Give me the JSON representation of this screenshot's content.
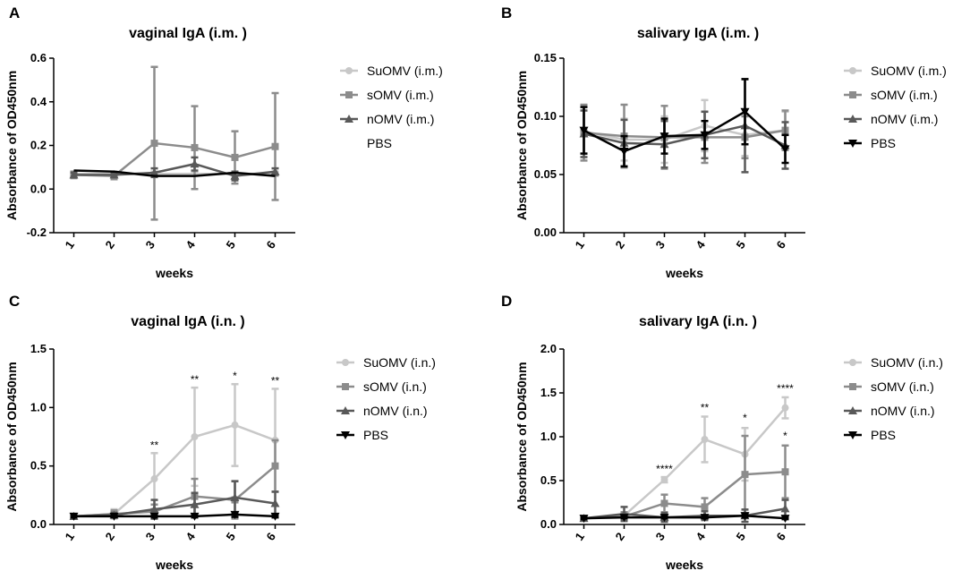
{
  "figure": {
    "colors": {
      "SuOMV": "#c8c8c8",
      "sOMV": "#8c8c8c",
      "nOMV": "#595959",
      "PBS": "#000000"
    }
  },
  "chart_data": [
    {
      "panel": "A",
      "type": "line",
      "title": "vaginal IgA (i.m. )",
      "xlabel": "weeks",
      "ylabel": "Absorbance of OD450nm",
      "categories": [
        "1",
        "2",
        "3",
        "4",
        "5",
        "6"
      ],
      "ylim": [
        -0.2,
        0.6
      ],
      "yticks": [
        "-0.2",
        "0.0",
        "0.2",
        "0.4",
        "0.6"
      ],
      "series": [
        {
          "key": "SuOMV",
          "name": "SuOMV (i.m.)",
          "marker": "circle",
          "values": [
            0.07,
            0.07,
            0.07,
            0.07,
            0.07,
            0.07
          ],
          "err": [
            0.01,
            0.01,
            0.01,
            0.01,
            0.01,
            0.01
          ]
        },
        {
          "key": "sOMV",
          "name": "sOMV (i.m.)",
          "marker": "square",
          "values": [
            0.065,
            0.06,
            0.21,
            0.19,
            0.145,
            0.195
          ],
          "err": [
            0.015,
            0.015,
            0.35,
            0.19,
            0.12,
            0.245
          ]
        },
        {
          "key": "nOMV",
          "name": "nOMV (i.m.)",
          "marker": "triangle",
          "values": [
            0.065,
            0.065,
            0.075,
            0.115,
            0.06,
            0.08
          ],
          "err": [
            0.01,
            0.01,
            0.02,
            0.03,
            0.02,
            0.015
          ]
        },
        {
          "key": "PBS",
          "name": "PBS",
          "marker": "none",
          "values": [
            0.085,
            0.08,
            0.06,
            0.06,
            0.075,
            0.06
          ],
          "err": [
            0,
            0,
            0,
            0,
            0,
            0
          ]
        }
      ],
      "annotations": []
    },
    {
      "panel": "B",
      "type": "line",
      "title": "salivary IgA (i.m. )",
      "xlabel": "weeks",
      "ylabel": "Absorbance of OD450nm",
      "categories": [
        "1",
        "2",
        "3",
        "4",
        "5",
        "6"
      ],
      "ylim": [
        0.0,
        0.15
      ],
      "yticks": [
        "0.00",
        "0.05",
        "0.10",
        "0.15"
      ],
      "series": [
        {
          "key": "SuOMV",
          "name": "SuOMV (i.m.)",
          "marker": "circle",
          "values": [
            0.087,
            0.08,
            0.08,
            0.092,
            0.084,
            0.088
          ],
          "err": [
            0.022,
            0.018,
            0.02,
            0.022,
            0.018,
            0.016
          ]
        },
        {
          "key": "sOMV",
          "name": "sOMV (i.m.)",
          "marker": "square",
          "values": [
            0.086,
            0.083,
            0.082,
            0.082,
            0.082,
            0.088
          ],
          "err": [
            0.024,
            0.027,
            0.027,
            0.022,
            0.018,
            0.017
          ]
        },
        {
          "key": "nOMV",
          "name": "nOMV (i.m.)",
          "marker": "triangle",
          "values": [
            0.085,
            0.077,
            0.076,
            0.084,
            0.092,
            0.075
          ],
          "err": [
            0.02,
            0.02,
            0.02,
            0.02,
            0.04,
            0.02
          ]
        },
        {
          "key": "PBS",
          "name": "PBS",
          "marker": "down-triangle",
          "values": [
            0.088,
            0.07,
            0.083,
            0.084,
            0.104,
            0.072
          ],
          "err": [
            0.02,
            0.013,
            0.015,
            0.012,
            0.028,
            0.012
          ]
        }
      ],
      "annotations": []
    },
    {
      "panel": "C",
      "type": "line",
      "title": "vaginal IgA (i.n. )",
      "xlabel": "weeks",
      "ylabel": "Absorbance of OD450nm",
      "categories": [
        "1",
        "2",
        "3",
        "4",
        "5",
        "6"
      ],
      "ylim": [
        0.0,
        1.5
      ],
      "yticks": [
        "0.0",
        "0.5",
        "1.0",
        "1.5"
      ],
      "series": [
        {
          "key": "SuOMV",
          "name": "SuOMV (i.n.)",
          "marker": "circle",
          "values": [
            0.07,
            0.09,
            0.39,
            0.75,
            0.85,
            0.72
          ],
          "err": [
            0.02,
            0.04,
            0.22,
            0.42,
            0.35,
            0.44
          ]
        },
        {
          "key": "sOMV",
          "name": "sOMV (i.n.)",
          "marker": "square",
          "values": [
            0.07,
            0.09,
            0.11,
            0.24,
            0.21,
            0.5
          ],
          "err": [
            0.02,
            0.03,
            0.06,
            0.15,
            0.16,
            0.22
          ]
        },
        {
          "key": "nOMV",
          "name": "nOMV (i.n.)",
          "marker": "triangle",
          "values": [
            0.07,
            0.08,
            0.13,
            0.17,
            0.23,
            0.18
          ],
          "err": [
            0.02,
            0.02,
            0.08,
            0.1,
            0.14,
            0.1
          ]
        },
        {
          "key": "PBS",
          "name": "PBS",
          "marker": "down-triangle",
          "values": [
            0.07,
            0.07,
            0.07,
            0.07,
            0.085,
            0.07
          ],
          "err": [
            0.01,
            0.01,
            0.01,
            0.01,
            0.02,
            0.01
          ]
        }
      ],
      "annotations": [
        {
          "x": "3",
          "y": 0.61,
          "text": "**"
        },
        {
          "x": "4",
          "y": 1.17,
          "text": "**"
        },
        {
          "x": "5",
          "y": 1.2,
          "text": "*"
        },
        {
          "x": "6",
          "y": 1.16,
          "text": "**"
        }
      ]
    },
    {
      "panel": "D",
      "type": "line",
      "title": "salivary IgA (i.n. )",
      "xlabel": "weeks",
      "ylabel": "Absorbance of OD450nm",
      "categories": [
        "1",
        "2",
        "3",
        "4",
        "5",
        "6"
      ],
      "ylim": [
        0.0,
        2.0
      ],
      "yticks": [
        "0.0",
        "0.5",
        "1.0",
        "1.5",
        "2.0"
      ],
      "series": [
        {
          "key": "SuOMV",
          "name": "SuOMV (i.n.)",
          "marker": "circle",
          "values": [
            0.07,
            0.1,
            0.51,
            0.97,
            0.8,
            1.33
          ],
          "err": [
            0.02,
            0.03,
            0.03,
            0.26,
            0.3,
            0.12
          ]
        },
        {
          "key": "sOMV",
          "name": "sOMV (i.n.)",
          "marker": "square",
          "values": [
            0.07,
            0.09,
            0.24,
            0.2,
            0.57,
            0.6
          ],
          "err": [
            0.02,
            0.05,
            0.1,
            0.1,
            0.44,
            0.3
          ]
        },
        {
          "key": "nOMV",
          "name": "nOMV (i.n.)",
          "marker": "triangle",
          "values": [
            0.07,
            0.12,
            0.08,
            0.1,
            0.1,
            0.18
          ],
          "err": [
            0.02,
            0.08,
            0.05,
            0.05,
            0.07,
            0.1
          ]
        },
        {
          "key": "PBS",
          "name": "PBS",
          "marker": "down-triangle",
          "values": [
            0.07,
            0.08,
            0.08,
            0.08,
            0.1,
            0.07
          ],
          "err": [
            0.01,
            0.01,
            0.01,
            0.01,
            0.02,
            0.01
          ]
        }
      ],
      "annotations": [
        {
          "x": "3",
          "y": 0.54,
          "text": "****"
        },
        {
          "x": "4",
          "y": 1.24,
          "text": "**"
        },
        {
          "x": "5",
          "y": 1.12,
          "text": "*"
        },
        {
          "x": "6",
          "y": 1.46,
          "text": "****"
        },
        {
          "x": "6",
          "y": 0.92,
          "text": "*"
        }
      ]
    }
  ]
}
